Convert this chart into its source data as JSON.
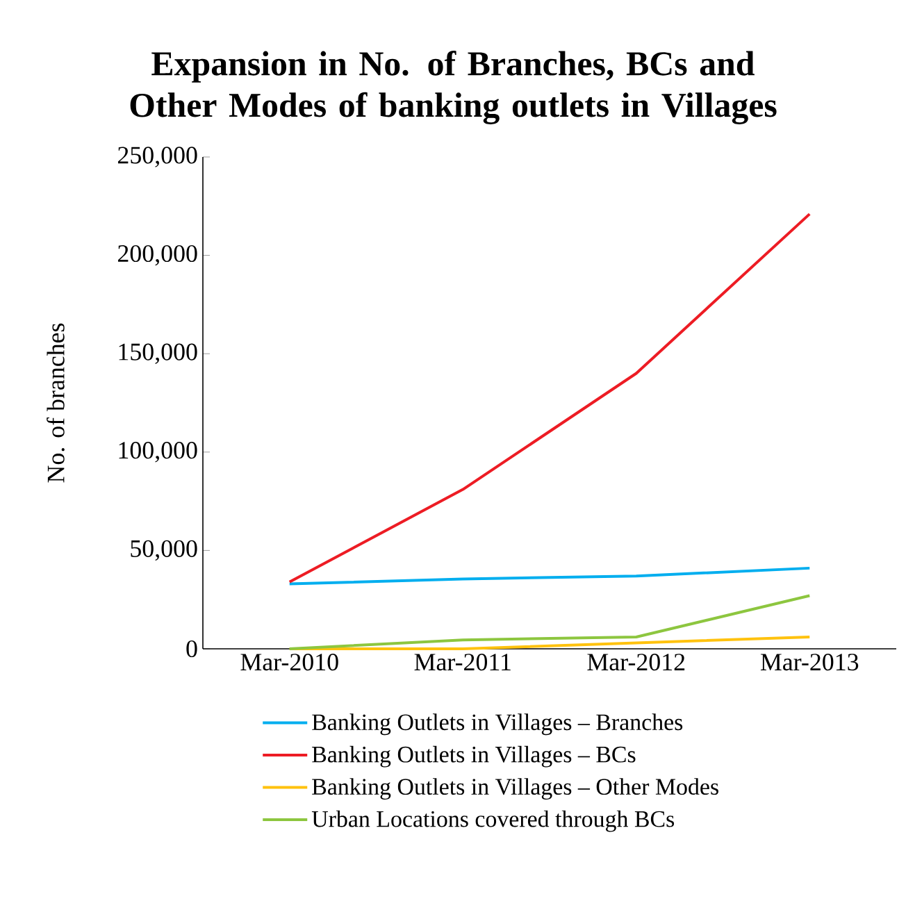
{
  "chart_data": {
    "type": "line",
    "title": "Expansion in No. of Branches, BCs and Other Modes of banking outlets in Villages",
    "ylabel": "No. of branches",
    "categories": [
      "Mar-2010",
      "Mar-2011",
      "Mar-2012",
      "Mar-2013"
    ],
    "ylim": [
      0,
      250000
    ],
    "yticks": [
      0,
      {
        "value": 50000,
        "label": "50,000"
      },
      {
        "value": 100000,
        "label": "100,000"
      },
      {
        "value": 150000,
        "label": "150,000"
      },
      {
        "value": 200000,
        "label": "200,000"
      },
      {
        "value": 250000,
        "label": "250,000"
      }
    ],
    "legend": "bottom",
    "grid": false,
    "series": [
      {
        "name": "Banking Outlets in Villages – Branches",
        "color": "#00aeef",
        "values": [
          33000,
          35500,
          37000,
          41000
        ]
      },
      {
        "name": "Banking Outlets in Villages – BCs",
        "color": "#ed1c24",
        "values": [
          34000,
          81000,
          140000,
          221000
        ]
      },
      {
        "name": "Banking Outlets in Villages – Other Modes",
        "color": "#ffc20e",
        "values": [
          0,
          0,
          3000,
          6000
        ]
      },
      {
        "name": "Urban Locations covered through BCs",
        "color": "#8dc63f",
        "values": [
          0,
          4500,
          6000,
          27000
        ]
      }
    ]
  }
}
